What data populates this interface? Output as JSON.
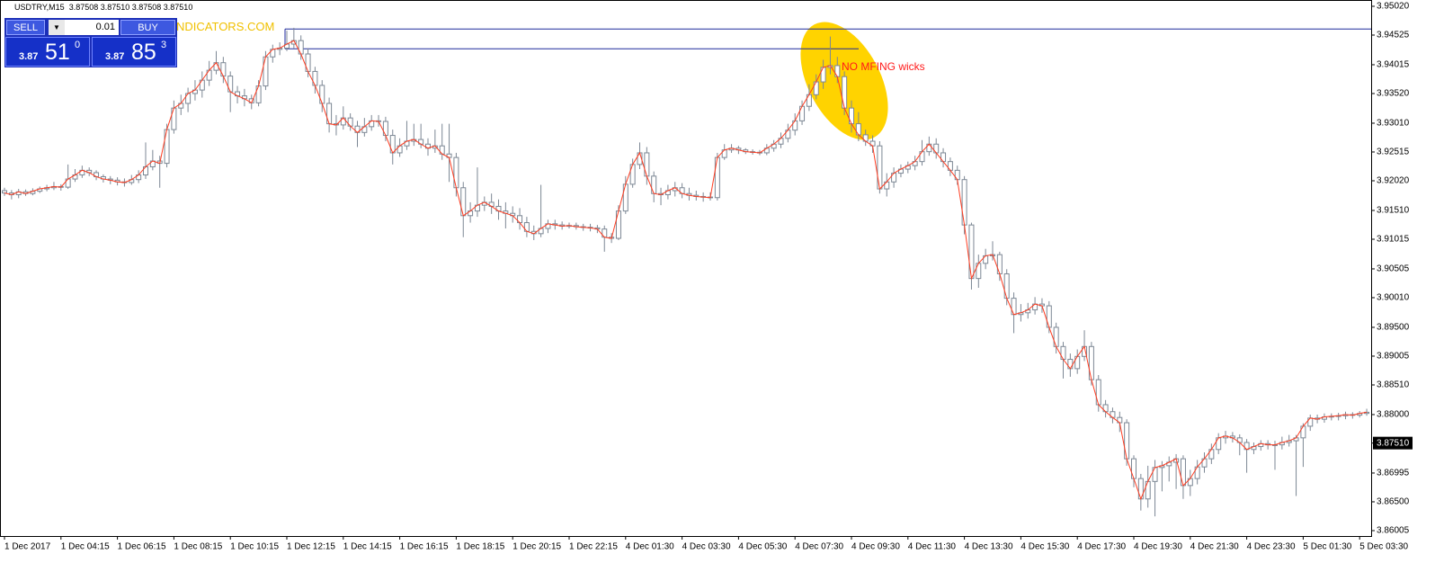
{
  "header": {
    "symbol_line": "USDTRY,M15  3.87508 3.87510 3.87508 3.87510"
  },
  "trade_panel": {
    "sell": "SELL",
    "buy": "BUY",
    "lots": "0.01",
    "bid_big": "3.87",
    "bid_pips": "51",
    "bid_point": "0",
    "ask_big": "3.87",
    "ask_pips": "85",
    "ask_point": "3"
  },
  "watermark": "NDICATORS.COM",
  "chart_data": {
    "type": "candlestick",
    "annotation": "NO MFING wicks",
    "categories": [
      "1 Dec 2017",
      null,
      null,
      null,
      null,
      null,
      null,
      null,
      "1 Dec 04:15",
      null,
      null,
      null,
      null,
      null,
      null,
      null,
      "1 Dec 06:15",
      null,
      null,
      null,
      null,
      null,
      null,
      null,
      "1 Dec 08:15",
      null,
      null,
      null,
      null,
      null,
      null,
      null,
      "1 Dec 10:15",
      null,
      null,
      null,
      null,
      null,
      null,
      null,
      "1 Dec 12:15",
      null,
      null,
      null,
      null,
      null,
      null,
      null,
      "1 Dec 14:15",
      null,
      null,
      null,
      null,
      null,
      null,
      null,
      "1 Dec 16:15",
      null,
      null,
      null,
      null,
      null,
      null,
      null,
      "1 Dec 18:15",
      null,
      null,
      null,
      null,
      null,
      null,
      null,
      "1 Dec 20:15",
      null,
      null,
      null,
      null,
      null,
      null,
      null,
      "1 Dec 22:15",
      null,
      null,
      null,
      null,
      null,
      null,
      null,
      "4 Dec 01:30",
      null,
      null,
      null,
      null,
      null,
      null,
      null,
      "4 Dec 03:30",
      null,
      null,
      null,
      null,
      null,
      null,
      null,
      "4 Dec 05:30",
      null,
      null,
      null,
      null,
      null,
      null,
      null,
      "4 Dec 07:30",
      null,
      null,
      null,
      null,
      null,
      null,
      null,
      "4 Dec 09:30",
      null,
      null,
      null,
      null,
      null,
      null,
      null,
      "4 Dec 11:30",
      null,
      null,
      null,
      null,
      null,
      null,
      null,
      "4 Dec 13:30",
      null,
      null,
      null,
      null,
      null,
      null,
      null,
      "4 Dec 15:30",
      null,
      null,
      null,
      null,
      null,
      null,
      null,
      "4 Dec 17:30",
      null,
      null,
      null,
      null,
      null,
      null,
      null,
      "4 Dec 19:30",
      null,
      null,
      null,
      null,
      null,
      null,
      null,
      "4 Dec 21:30",
      null,
      null,
      null,
      null,
      null,
      null,
      null,
      "4 Dec 23:30",
      null,
      null,
      null,
      null,
      null,
      null,
      null,
      "5 Dec 01:30",
      null,
      null,
      null,
      null,
      null,
      null,
      null,
      "5 Dec 03:30",
      null
    ],
    "open": [
      3.9185,
      3.9181,
      3.9178,
      3.9183,
      3.918,
      3.9184,
      3.9188,
      3.919,
      3.9192,
      3.9191,
      3.9205,
      3.9212,
      3.922,
      3.9216,
      3.9209,
      3.9205,
      3.9203,
      3.92,
      3.9199,
      3.9204,
      3.9212,
      3.9226,
      3.9236,
      3.9232,
      3.929,
      3.9327,
      3.9335,
      3.9352,
      3.9358,
      3.9375,
      3.9392,
      3.9405,
      3.9382,
      3.9355,
      3.9348,
      3.9343,
      3.9336,
      3.9365,
      3.9415,
      3.9428,
      3.943,
      3.9437,
      3.9443,
      3.942,
      3.939,
      3.9366,
      3.9335,
      3.93,
      3.9298,
      3.931,
      3.9296,
      3.9285,
      3.9295,
      3.9305,
      3.9304,
      3.928,
      3.925,
      3.9262,
      3.927,
      3.9273,
      3.9265,
      3.9258,
      3.9262,
      3.9248,
      3.9242,
      3.919,
      3.9142,
      3.915,
      3.916,
      3.9165,
      3.9158,
      3.915,
      3.9146,
      3.9142,
      3.913,
      3.9115,
      3.9111,
      3.912,
      3.9128,
      3.9126,
      3.9124,
      3.9125,
      3.9123,
      3.9122,
      3.9121,
      3.9119,
      3.9105,
      3.9103,
      3.915,
      3.9196,
      3.923,
      3.925,
      3.921,
      3.918,
      3.9178,
      3.9185,
      3.919,
      3.918,
      3.9177,
      3.9175,
      3.9174,
      3.9173,
      3.9242,
      3.9255,
      3.9258,
      3.9255,
      3.9252,
      3.9251,
      3.925,
      3.9258,
      3.9265,
      3.9275,
      3.9289,
      3.9305,
      3.933,
      3.935,
      3.9372,
      3.9397,
      3.94,
      3.9381,
      3.9327,
      3.93,
      3.9281,
      3.927,
      3.9262,
      3.9188,
      3.92,
      3.9215,
      3.9222,
      3.9228,
      3.9235,
      3.9252,
      3.9265,
      3.925,
      3.9235,
      3.922,
      3.9204,
      3.9126,
      3.9034,
      3.906,
      3.9073,
      3.9075,
      3.9042,
      3.9,
      3.8972,
      3.8975,
      3.898,
      3.899,
      3.8987,
      3.895,
      3.8917,
      3.8895,
      3.8879,
      3.89,
      3.8917,
      3.886,
      3.8817,
      3.8805,
      3.8795,
      3.8786,
      3.8724,
      3.869,
      3.8655,
      3.8685,
      3.8709,
      3.8712,
      3.8718,
      3.8724,
      3.8678,
      3.869,
      3.871,
      3.8724,
      3.874,
      3.876,
      3.8763,
      3.876,
      3.8752,
      3.874,
      3.8745,
      3.875,
      3.8748,
      3.8748,
      3.8752,
      3.8755,
      3.876,
      3.878,
      3.8794,
      3.8792,
      3.8796,
      3.8797,
      3.8798,
      3.88,
      3.8799,
      3.8802
    ],
    "high": [
      3.919,
      3.9186,
      3.9188,
      3.9187,
      3.9189,
      3.9192,
      3.9195,
      3.92,
      3.9196,
      3.923,
      3.9222,
      3.9228,
      3.9225,
      3.922,
      3.9213,
      3.921,
      3.9208,
      3.9206,
      3.9212,
      3.922,
      3.9268,
      3.9255,
      3.9245,
      3.93,
      3.934,
      3.935,
      3.9362,
      3.9375,
      3.939,
      3.9408,
      3.9425,
      3.9415,
      3.939,
      3.9365,
      3.936,
      3.935,
      3.9375,
      3.9425,
      3.9436,
      3.944,
      3.946,
      3.9465,
      3.9452,
      3.943,
      3.9398,
      3.9375,
      3.9345,
      3.9315,
      3.933,
      3.9318,
      3.9305,
      3.931,
      3.9315,
      3.9315,
      3.9312,
      3.929,
      3.9275,
      3.9305,
      3.93,
      3.93,
      3.9275,
      3.929,
      3.93,
      3.93,
      3.925,
      3.92,
      3.9165,
      3.9225,
      3.9175,
      3.918,
      3.917,
      3.9165,
      3.9158,
      3.9155,
      3.914,
      3.9125,
      3.9195,
      3.9135,
      3.9135,
      3.9132,
      3.913,
      3.913,
      3.9128,
      3.9128,
      3.9126,
      3.9125,
      3.9112,
      3.916,
      3.921,
      3.924,
      3.9268,
      3.926,
      3.9218,
      3.919,
      3.9195,
      3.92,
      3.9198,
      3.919,
      3.9185,
      3.9182,
      3.9182,
      3.925,
      3.9265,
      3.9265,
      3.9262,
      3.9258,
      3.9256,
      3.9255,
      3.9265,
      3.9272,
      3.9285,
      3.93,
      3.9318,
      3.934,
      3.9368,
      3.9385,
      3.941,
      3.945,
      3.9415,
      3.939,
      3.934,
      3.932,
      3.929,
      3.928,
      3.927,
      3.9215,
      3.9225,
      3.923,
      3.9235,
      3.9245,
      3.9272,
      3.9278,
      3.9275,
      3.9258,
      3.9242,
      3.9228,
      3.921,
      3.913,
      3.9075,
      3.9085,
      3.9098,
      3.908,
      3.905,
      3.901,
      3.899,
      3.8992,
      3.9002,
      3.9,
      3.8995,
      3.8958,
      3.8925,
      3.8905,
      3.8912,
      3.8945,
      3.8925,
      3.8868,
      3.8825,
      3.8812,
      3.8805,
      3.8792,
      3.873,
      3.8698,
      3.8712,
      3.8722,
      3.872,
      3.8728,
      3.8732,
      3.873,
      3.8705,
      3.8722,
      3.8735,
      3.875,
      3.8768,
      3.8772,
      3.877,
      3.8766,
      3.8758,
      3.8752,
      3.8756,
      3.8756,
      3.8755,
      3.8762,
      3.8765,
      3.8765,
      3.8785,
      3.88,
      3.88,
      3.8802,
      3.8802,
      3.8803,
      3.8805,
      3.8804,
      3.8806,
      3.881
    ],
    "low": [
      3.9176,
      3.917,
      3.9172,
      3.9176,
      3.9177,
      3.9181,
      3.9184,
      3.9186,
      3.9185,
      3.9188,
      3.92,
      3.9207,
      3.921,
      3.9203,
      3.9199,
      3.9196,
      3.9194,
      3.9192,
      3.9195,
      3.9198,
      3.9205,
      3.922,
      3.919,
      3.9225,
      3.9283,
      3.9315,
      3.932,
      3.934,
      3.9345,
      3.9365,
      3.9385,
      3.937,
      3.932,
      3.9335,
      3.933,
      3.9325,
      3.933,
      3.9358,
      3.9405,
      3.9418,
      3.9425,
      3.943,
      3.941,
      3.938,
      3.9352,
      3.932,
      3.9285,
      3.928,
      3.929,
      3.9288,
      3.926,
      3.9278,
      3.9288,
      3.9295,
      3.927,
      3.923,
      3.9243,
      3.9255,
      3.9262,
      3.9258,
      3.9245,
      3.925,
      3.9238,
      3.92,
      3.9175,
      3.9105,
      3.913,
      3.914,
      3.915,
      3.9145,
      3.9135,
      3.912,
      3.913,
      3.9118,
      3.9105,
      3.91,
      3.9105,
      3.9112,
      3.9118,
      3.9118,
      3.912,
      3.9118,
      3.9116,
      3.9115,
      3.9112,
      3.908,
      3.9095,
      3.91,
      3.9145,
      3.919,
      3.9222,
      3.9195,
      3.9165,
      3.916,
      3.917,
      3.9175,
      3.9172,
      3.9168,
      3.9168,
      3.9166,
      3.9168,
      3.9168,
      3.9238,
      3.925,
      3.9248,
      3.9248,
      3.9247,
      3.9246,
      3.9246,
      3.9252,
      3.9258,
      3.9268,
      3.928,
      3.9298,
      3.9322,
      3.9342,
      3.936,
      3.9385,
      3.937,
      3.9315,
      3.9285,
      3.927,
      3.9262,
      3.925,
      3.918,
      3.9175,
      3.919,
      3.9208,
      3.9215,
      3.922,
      3.9228,
      3.9245,
      3.924,
      3.9225,
      3.921,
      3.9195,
      3.911,
      3.9015,
      3.9018,
      3.905,
      3.9065,
      3.903,
      3.8988,
      3.894,
      3.896,
      3.8965,
      3.8972,
      3.8975,
      3.894,
      3.8905,
      3.8862,
      3.8865,
      3.887,
      3.8892,
      3.885,
      3.8805,
      3.8795,
      3.8785,
      3.877,
      3.8712,
      3.8675,
      3.8635,
      3.864,
      3.8625,
      3.8668,
      3.8685,
      3.8672,
      3.8655,
      3.866,
      3.868,
      3.87,
      3.8715,
      3.8732,
      3.875,
      3.8752,
      3.873,
      3.87,
      3.8732,
      3.8738,
      3.874,
      3.8705,
      3.874,
      3.8745,
      3.866,
      3.871,
      3.8772,
      3.8785,
      3.8786,
      3.879,
      3.879,
      3.8792,
      3.8793,
      3.8795,
      3.8798
    ],
    "close": [
      3.9181,
      3.9178,
      3.9183,
      3.918,
      3.9184,
      3.9188,
      3.919,
      3.9192,
      3.9191,
      3.9205,
      3.9212,
      3.922,
      3.9216,
      3.9209,
      3.9205,
      3.9203,
      3.92,
      3.9199,
      3.9204,
      3.9212,
      3.9226,
      3.9236,
      3.9232,
      3.929,
      3.9327,
      3.9335,
      3.9352,
      3.9358,
      3.9375,
      3.9392,
      3.9405,
      3.9382,
      3.9355,
      3.9348,
      3.9343,
      3.9336,
      3.9365,
      3.9415,
      3.9428,
      3.943,
      3.9437,
      3.9443,
      3.942,
      3.939,
      3.9366,
      3.9335,
      3.93,
      3.9298,
      3.931,
      3.9296,
      3.9285,
      3.9295,
      3.9305,
      3.9304,
      3.928,
      3.925,
      3.9262,
      3.927,
      3.9273,
      3.9265,
      3.9258,
      3.9262,
      3.9248,
      3.9242,
      3.919,
      3.9142,
      3.915,
      3.916,
      3.9165,
      3.9158,
      3.915,
      3.9146,
      3.9142,
      3.913,
      3.9115,
      3.9111,
      3.912,
      3.9128,
      3.9126,
      3.9124,
      3.9125,
      3.9123,
      3.9122,
      3.9121,
      3.9119,
      3.9105,
      3.9103,
      3.915,
      3.9196,
      3.923,
      3.925,
      3.921,
      3.918,
      3.9178,
      3.9185,
      3.919,
      3.918,
      3.9177,
      3.9175,
      3.9174,
      3.9173,
      3.9242,
      3.9255,
      3.9258,
      3.9255,
      3.9252,
      3.9251,
      3.925,
      3.9258,
      3.9265,
      3.9275,
      3.9289,
      3.9305,
      3.933,
      3.935,
      3.9372,
      3.9397,
      3.94,
      3.9381,
      3.9327,
      3.93,
      3.9281,
      3.927,
      3.9262,
      3.9188,
      3.92,
      3.9215,
      3.9222,
      3.9228,
      3.9235,
      3.9252,
      3.9265,
      3.925,
      3.9235,
      3.922,
      3.9204,
      3.9126,
      3.9034,
      3.906,
      3.9073,
      3.9075,
      3.9042,
      3.9,
      3.8972,
      3.8975,
      3.898,
      3.899,
      3.8987,
      3.895,
      3.8917,
      3.8895,
      3.8879,
      3.89,
      3.8917,
      3.886,
      3.8817,
      3.8805,
      3.8795,
      3.8786,
      3.8724,
      3.869,
      3.8655,
      3.8685,
      3.8709,
      3.8712,
      3.8718,
      3.8724,
      3.8678,
      3.869,
      3.871,
      3.8724,
      3.874,
      3.876,
      3.8763,
      3.876,
      3.8752,
      3.874,
      3.8745,
      3.875,
      3.8748,
      3.8748,
      3.8752,
      3.8755,
      3.876,
      3.878,
      3.8794,
      3.8792,
      3.8796,
      3.8797,
      3.8798,
      3.88,
      3.8799,
      3.8802,
      3.8804
    ],
    "ylim": [
      3.85912,
      3.95128
    ],
    "yticks": [
      {
        "value": 3.9502,
        "label": "3.95020"
      },
      3.94525,
      3.94015,
      {
        "value": 3.9352,
        "label": "3.93520"
      },
      {
        "value": 3.9301,
        "label": "3.93010"
      },
      3.92515,
      {
        "value": 3.9202,
        "label": "3.92020"
      },
      {
        "value": 3.9151,
        "label": "3.91510"
      },
      3.91015,
      3.90505,
      {
        "value": 3.9001,
        "label": "3.90010"
      },
      {
        "value": 3.895,
        "label": "3.89500"
      },
      3.89005,
      {
        "value": 3.8851,
        "label": "3.88510"
      },
      {
        "value": 3.88,
        "label": "3.88000"
      },
      {
        "value": 3.8751,
        "label": "3.87510"
      },
      3.86995,
      {
        "value": 3.865,
        "label": "3.86500"
      },
      3.86005
    ],
    "up_color": "#ffffff",
    "down_color": "#ffffff",
    "wick_color": "#7c8794",
    "line_color": "#ff3b1f",
    "hlines": [
      {
        "value": 3.9463,
        "color": "#1f2a9c"
      },
      {
        "value": 3.9429,
        "color": "#1f2a9c"
      }
    ]
  }
}
